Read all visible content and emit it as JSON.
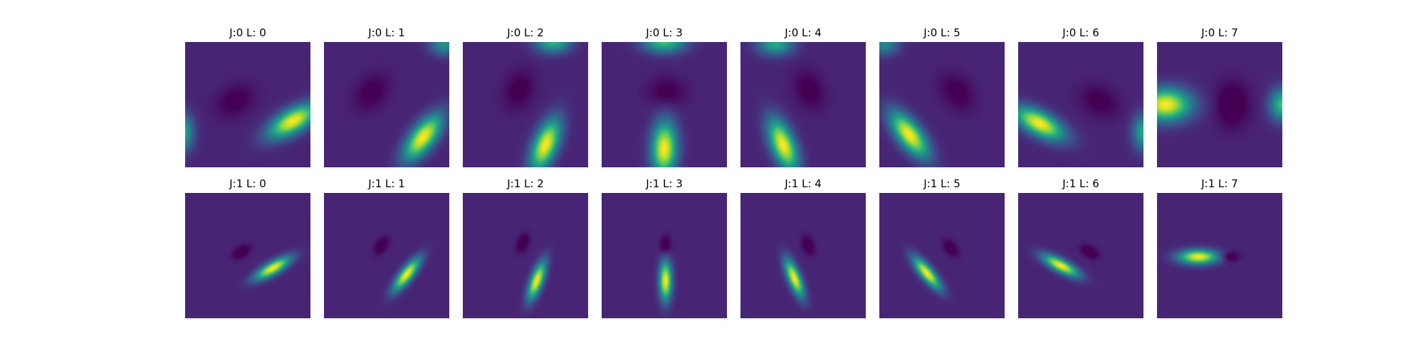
{
  "chart_data": {
    "type": "heatmap",
    "colormap": "viridis",
    "layout": {
      "rows": 2,
      "cols": 8
    },
    "panels": [
      {
        "title": "J:0 L: 0",
        "j": 0,
        "l": 0,
        "blobs": [
          {
            "cx": 0.86,
            "cy": 0.63,
            "sx": 0.15,
            "sy": 0.065,
            "rot": -30,
            "amp": 1.0
          },
          {
            "cx": -0.02,
            "cy": 0.72,
            "sx": 0.06,
            "sy": 0.1,
            "rot": 0,
            "amp": 0.6
          },
          {
            "cx": 0.4,
            "cy": 0.47,
            "sx": 0.11,
            "sy": 0.08,
            "rot": -30,
            "amp": -0.14
          }
        ]
      },
      {
        "title": "J:0 L: 1",
        "j": 0,
        "l": 1,
        "blobs": [
          {
            "cx": 0.79,
            "cy": 0.76,
            "sx": 0.15,
            "sy": 0.065,
            "rot": -52,
            "amp": 1.0
          },
          {
            "cx": 0.96,
            "cy": 0.02,
            "sx": 0.08,
            "sy": 0.06,
            "rot": 0,
            "amp": 0.45
          },
          {
            "cx": 0.38,
            "cy": 0.4,
            "sx": 0.11,
            "sy": 0.08,
            "rot": -52,
            "amp": -0.14
          }
        ]
      },
      {
        "title": "J:0 L: 2",
        "j": 0,
        "l": 2,
        "blobs": [
          {
            "cx": 0.66,
            "cy": 0.82,
            "sx": 0.15,
            "sy": 0.065,
            "rot": -68,
            "amp": 1.0
          },
          {
            "cx": 0.72,
            "cy": 0.0,
            "sx": 0.1,
            "sy": 0.06,
            "rot": 0,
            "amp": 0.6
          },
          {
            "cx": 0.45,
            "cy": 0.38,
            "sx": 0.11,
            "sy": 0.08,
            "rot": -68,
            "amp": -0.14
          }
        ]
      },
      {
        "title": "J:0 L: 3",
        "j": 0,
        "l": 3,
        "blobs": [
          {
            "cx": 0.5,
            "cy": 0.85,
            "sx": 0.15,
            "sy": 0.07,
            "rot": -88,
            "amp": 1.0
          },
          {
            "cx": 0.5,
            "cy": 0.0,
            "sx": 0.12,
            "sy": 0.06,
            "rot": 0,
            "amp": 0.65
          },
          {
            "cx": 0.52,
            "cy": 0.4,
            "sx": 0.1,
            "sy": 0.08,
            "rot": 0,
            "amp": -0.14
          }
        ]
      },
      {
        "title": "J:0 L: 4",
        "j": 0,
        "l": 4,
        "blobs": [
          {
            "cx": 0.34,
            "cy": 0.82,
            "sx": 0.15,
            "sy": 0.065,
            "rot": -112,
            "amp": 1.0
          },
          {
            "cx": 0.28,
            "cy": 0.02,
            "sx": 0.1,
            "sy": 0.06,
            "rot": 0,
            "amp": 0.55
          },
          {
            "cx": 0.55,
            "cy": 0.38,
            "sx": 0.11,
            "sy": 0.08,
            "rot": -112,
            "amp": -0.14
          }
        ]
      },
      {
        "title": "J:0 L: 5",
        "j": 0,
        "l": 5,
        "blobs": [
          {
            "cx": 0.24,
            "cy": 0.74,
            "sx": 0.15,
            "sy": 0.065,
            "rot": -128,
            "amp": 1.0
          },
          {
            "cx": 0.04,
            "cy": 0.02,
            "sx": 0.08,
            "sy": 0.06,
            "rot": 0,
            "amp": 0.4
          },
          {
            "cx": 0.62,
            "cy": 0.4,
            "sx": 0.11,
            "sy": 0.08,
            "rot": -128,
            "amp": -0.14
          }
        ]
      },
      {
        "title": "J:0 L: 6",
        "j": 0,
        "l": 6,
        "blobs": [
          {
            "cx": 0.17,
            "cy": 0.65,
            "sx": 0.15,
            "sy": 0.065,
            "rot": -152,
            "amp": 1.0
          },
          {
            "cx": 1.0,
            "cy": 0.72,
            "sx": 0.06,
            "sy": 0.1,
            "rot": 0,
            "amp": 0.55
          },
          {
            "cx": 0.65,
            "cy": 0.47,
            "sx": 0.11,
            "sy": 0.08,
            "rot": -152,
            "amp": -0.14
          }
        ]
      },
      {
        "title": "J:0 L: 7",
        "j": 0,
        "l": 7,
        "blobs": [
          {
            "cx": 0.07,
            "cy": 0.5,
            "sx": 0.14,
            "sy": 0.09,
            "rot": 0,
            "amp": 1.0
          },
          {
            "cx": 1.0,
            "cy": 0.5,
            "sx": 0.07,
            "sy": 0.09,
            "rot": 0,
            "amp": 0.65
          },
          {
            "cx": 0.6,
            "cy": 0.5,
            "sx": 0.09,
            "sy": 0.12,
            "rot": 0,
            "amp": -0.2
          }
        ]
      },
      {
        "title": "J:1 L: 0",
        "j": 1,
        "l": 0,
        "blobs": [
          {
            "cx": 0.7,
            "cy": 0.6,
            "sx": 0.11,
            "sy": 0.035,
            "rot": -30,
            "amp": 1.0
          },
          {
            "cx": 0.45,
            "cy": 0.47,
            "sx": 0.05,
            "sy": 0.03,
            "rot": -30,
            "amp": -0.2
          }
        ]
      },
      {
        "title": "J:1 L: 1",
        "j": 1,
        "l": 1,
        "blobs": [
          {
            "cx": 0.66,
            "cy": 0.65,
            "sx": 0.11,
            "sy": 0.035,
            "rot": -52,
            "amp": 1.0
          },
          {
            "cx": 0.46,
            "cy": 0.42,
            "sx": 0.05,
            "sy": 0.03,
            "rot": -52,
            "amp": -0.2
          }
        ]
      },
      {
        "title": "J:1 L: 2",
        "j": 1,
        "l": 2,
        "blobs": [
          {
            "cx": 0.59,
            "cy": 0.7,
            "sx": 0.11,
            "sy": 0.035,
            "rot": -70,
            "amp": 1.0
          },
          {
            "cx": 0.48,
            "cy": 0.4,
            "sx": 0.05,
            "sy": 0.03,
            "rot": -70,
            "amp": -0.2
          }
        ]
      },
      {
        "title": "J:1 L: 3",
        "j": 1,
        "l": 3,
        "blobs": [
          {
            "cx": 0.51,
            "cy": 0.7,
            "sx": 0.11,
            "sy": 0.035,
            "rot": -90,
            "amp": 1.0
          },
          {
            "cx": 0.51,
            "cy": 0.42,
            "sx": 0.05,
            "sy": 0.03,
            "rot": -90,
            "amp": -0.2
          }
        ]
      },
      {
        "title": "J:1 L: 4",
        "j": 1,
        "l": 4,
        "blobs": [
          {
            "cx": 0.43,
            "cy": 0.68,
            "sx": 0.11,
            "sy": 0.035,
            "rot": -112,
            "amp": 1.0
          },
          {
            "cx": 0.54,
            "cy": 0.42,
            "sx": 0.05,
            "sy": 0.03,
            "rot": -112,
            "amp": -0.2
          }
        ]
      },
      {
        "title": "J:1 L: 5",
        "j": 1,
        "l": 5,
        "blobs": [
          {
            "cx": 0.38,
            "cy": 0.64,
            "sx": 0.11,
            "sy": 0.035,
            "rot": -130,
            "amp": 1.0
          },
          {
            "cx": 0.57,
            "cy": 0.44,
            "sx": 0.05,
            "sy": 0.03,
            "rot": -130,
            "amp": -0.2
          }
        ]
      },
      {
        "title": "J:1 L: 6",
        "j": 1,
        "l": 6,
        "blobs": [
          {
            "cx": 0.34,
            "cy": 0.58,
            "sx": 0.11,
            "sy": 0.035,
            "rot": -152,
            "amp": 1.0
          },
          {
            "cx": 0.57,
            "cy": 0.47,
            "sx": 0.05,
            "sy": 0.03,
            "rot": -152,
            "amp": -0.2
          }
        ]
      },
      {
        "title": "J:1 L: 7",
        "j": 1,
        "l": 7,
        "blobs": [
          {
            "cx": 0.33,
            "cy": 0.51,
            "sx": 0.11,
            "sy": 0.04,
            "rot": 0,
            "amp": 1.0
          },
          {
            "cx": 0.58,
            "cy": 0.51,
            "sx": 0.05,
            "sy": 0.03,
            "rot": 0,
            "amp": -0.2
          }
        ]
      }
    ]
  }
}
